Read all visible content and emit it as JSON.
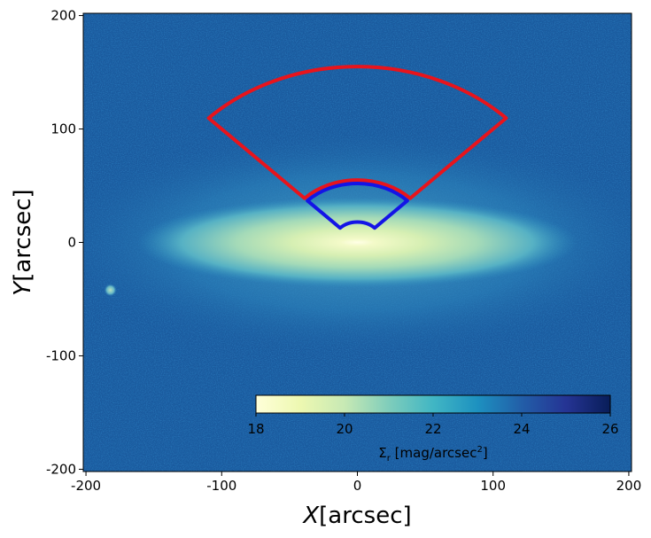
{
  "chart_data": {
    "type": "heatmap",
    "title": "",
    "xlabel": "$X$[arcsec]",
    "ylabel": "$Y$[arcsec]",
    "xlabel_var": "X",
    "xlabel_unit": "[arcsec]",
    "ylabel_var": "Y",
    "ylabel_unit": "[arcsec]",
    "xlim": [
      -202,
      202
    ],
    "ylim": [
      -202,
      202
    ],
    "xticks": [
      -200,
      -100,
      0,
      100,
      200
    ],
    "yticks": [
      -200,
      -100,
      0,
      100,
      200
    ],
    "xtick_labels": [
      "-200",
      "-100",
      "0",
      "100",
      "200"
    ],
    "ytick_labels": [
      "-200",
      "-100",
      "0",
      "100",
      "200"
    ],
    "grid": false,
    "colormap": "YlGnBu",
    "colorbar": {
      "label": "Σr [mag/arcsec²]",
      "label_main": "Σ",
      "label_sub": "r",
      "label_rest": " [mag/arcsec",
      "label_sup": "2",
      "label_end": "]",
      "range": [
        18,
        26
      ],
      "ticks": [
        18,
        20,
        22,
        24,
        26
      ],
      "tick_labels": [
        "18",
        "20",
        "22",
        "24",
        "26"
      ],
      "placement": "inside-lower-right"
    },
    "sectors": [
      {
        "color": "#e8141c",
        "center": [
          0,
          0
        ],
        "r_inner": 55,
        "r_outer": 155,
        "angle_start_deg": 45,
        "angle_end_deg": 135
      },
      {
        "color": "#1414e6",
        "center": [
          0,
          0
        ],
        "r_inner": 18,
        "r_outer": 52,
        "angle_start_deg": 45,
        "angle_end_deg": 135
      }
    ],
    "features": [
      {
        "kind": "galaxy-disk",
        "x": 0,
        "y": 0,
        "semi_major": 120,
        "semi_minor": 25
      },
      {
        "kind": "point-source",
        "x": -182,
        "y": -42
      }
    ]
  }
}
